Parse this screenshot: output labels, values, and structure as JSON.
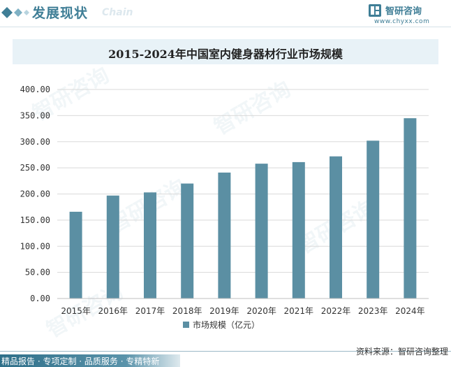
{
  "header": {
    "title": "发展现状",
    "subtitle": "Chain",
    "brand_name": "智研咨询",
    "brand_url": "www.chyxx.com"
  },
  "watermark": "智研咨询",
  "footer": {
    "left": "精品报告 · 专项定制 · 品质服务 · 专精特新",
    "right": "资料来源：智研咨询整理"
  },
  "colors": {
    "accent": "#3f7e96",
    "bar": "#5b8fa3",
    "title_band": "#e8f2f7"
  },
  "chart_data": {
    "type": "bar",
    "title": "2015-2024年中国室内健身器材行业市场规模",
    "categories": [
      "2015年",
      "2016年",
      "2017年",
      "2018年",
      "2019年",
      "2020年",
      "2021年",
      "2022年",
      "2023年",
      "2024年"
    ],
    "series": [
      {
        "name": "市场规模（亿元）",
        "values": [
          166,
          197,
          203,
          220,
          241,
          258,
          261,
          272,
          302,
          345
        ]
      }
    ],
    "ylim": [
      0,
      400
    ],
    "yticks": [
      "0.00",
      "50.00",
      "100.00",
      "150.00",
      "200.00",
      "250.00",
      "300.00",
      "350.00",
      "400.00"
    ],
    "grid": true,
    "legend": "bottom"
  }
}
